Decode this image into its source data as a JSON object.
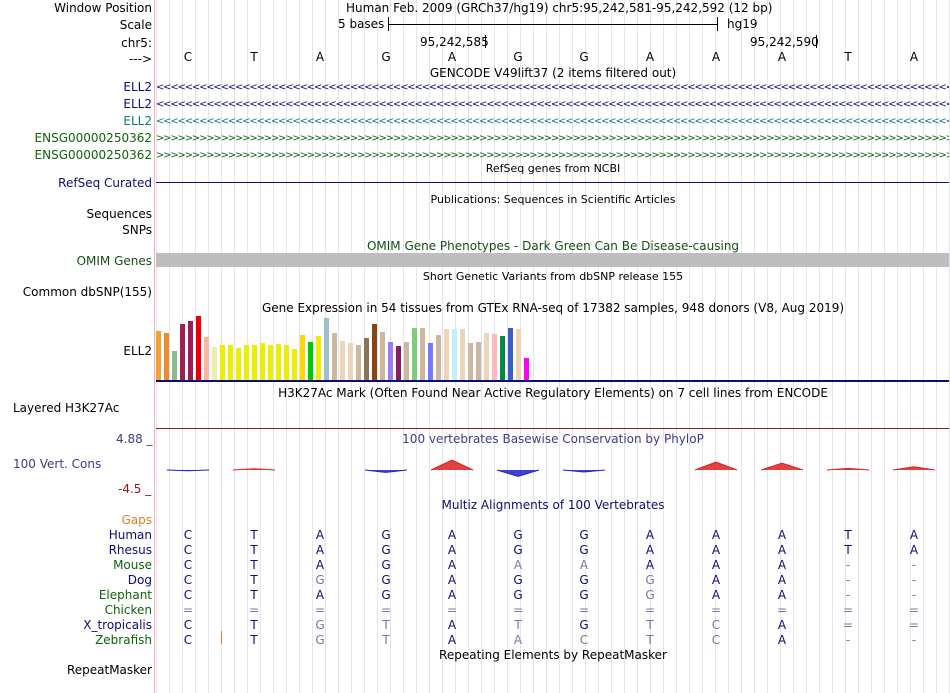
{
  "header": {
    "labels": [
      "Window Position",
      "Scale",
      "chr5:",
      "--->"
    ],
    "position_text": "Human Feb. 2009 (GRCh37/hg19)   chr5:95,242,581-95,242,592 (12 bp)",
    "scale_label": "5 bases",
    "scale_assembly": "hg19",
    "coord_1": "95,242,585",
    "coord_2": "95,242,590"
  },
  "reference_bases": [
    "C",
    "T",
    "A",
    "G",
    "A",
    "G",
    "G",
    "A",
    "A",
    "A",
    "T",
    "A"
  ],
  "gencode": {
    "title": "GENCODE V49lift37 (2 items filtered out)",
    "items": [
      {
        "label": "ELL2",
        "color": "#0c0c78",
        "strand": "<"
      },
      {
        "label": "ELL2",
        "color": "#0c0c78",
        "strand": "<"
      },
      {
        "label": "ELL2",
        "color": "#0c7882",
        "strand": "<"
      },
      {
        "label": "ENSG00000250362",
        "color": "#0c640c",
        "strand": ">"
      },
      {
        "label": "ENSG00000250362",
        "color": "#0c640c",
        "strand": ">"
      }
    ]
  },
  "refseq": {
    "title": "RefSeq genes from NCBI",
    "label": "RefSeq Curated",
    "color": "#0c0c78"
  },
  "publications": {
    "title": "Publications: Sequences in Scientific Articles",
    "labels": [
      "Sequences",
      "SNPs"
    ]
  },
  "omim": {
    "title": "OMIM Gene Phenotypes - Dark Green Can Be Disease-causing",
    "label": "OMIM Genes",
    "color": "#145014",
    "bar_color": "#bebebe"
  },
  "dbsnp": {
    "title": "Short Genetic Variants from dbSNP release 155",
    "label": "Common dbSNP(155)"
  },
  "gtex": {
    "title": "Gene Expression in 54 tissues from GTEx RNA-seq of 17382 samples, 948 donors (V8, Aug 2019)",
    "label": "ELL2",
    "bars": [
      {
        "color": "#f4a030",
        "value": 0.77
      },
      {
        "color": "#ee8a2e",
        "value": 0.73
      },
      {
        "color": "#8fbc8f",
        "value": 0.45
      },
      {
        "color": "#a0204f",
        "value": 0.88
      },
      {
        "color": "#9b1d56",
        "value": 0.92
      },
      {
        "color": "#ee0000",
        "value": 1.0
      },
      {
        "color": "#ffb6a0",
        "value": 0.67
      },
      {
        "color": "#eeeeaa",
        "value": 0.52
      },
      {
        "color": "#eeee00",
        "value": 0.55
      },
      {
        "color": "#eeee00",
        "value": 0.55
      },
      {
        "color": "#eeee00",
        "value": 0.5
      },
      {
        "color": "#eeee00",
        "value": 0.55
      },
      {
        "color": "#eeee00",
        "value": 0.54
      },
      {
        "color": "#eeee00",
        "value": 0.58
      },
      {
        "color": "#eeee00",
        "value": 0.55
      },
      {
        "color": "#eeee00",
        "value": 0.56
      },
      {
        "color": "#eeee00",
        "value": 0.54
      },
      {
        "color": "#eeee00",
        "value": 0.48
      },
      {
        "color": "#ffd700",
        "value": 0.7
      },
      {
        "color": "#00cd00",
        "value": 0.6
      },
      {
        "color": "#eeee00",
        "value": 0.69
      },
      {
        "color": "#9ac0cd",
        "value": 0.97
      },
      {
        "color": "#cdb79e",
        "value": 0.73
      },
      {
        "color": "#eed5b7",
        "value": 0.61
      },
      {
        "color": "#eed5b7",
        "value": 0.58
      },
      {
        "color": "#cdb79e",
        "value": 0.55
      },
      {
        "color": "#8b7355",
        "value": 0.66
      },
      {
        "color": "#8b4513",
        "value": 0.88
      },
      {
        "color": "#cdb79e",
        "value": 0.75
      },
      {
        "color": "#9f79ee",
        "value": 0.6
      },
      {
        "color": "#8b1c62",
        "value": 0.53
      },
      {
        "color": "#cdb79e",
        "value": 0.6
      },
      {
        "color": "#7ccd7c",
        "value": 0.81
      },
      {
        "color": "#cdb79e",
        "value": 0.82
      },
      {
        "color": "#7777ff",
        "value": 0.58
      },
      {
        "color": "#cdb79e",
        "value": 0.7
      },
      {
        "color": "#eed5b7",
        "value": 0.8
      },
      {
        "color": "#bfefff",
        "value": 0.8
      },
      {
        "color": "#eed5b7",
        "value": 0.8
      },
      {
        "color": "#cdb79e",
        "value": 0.58
      },
      {
        "color": "#cdb79e",
        "value": 0.6
      },
      {
        "color": "#eed5b7",
        "value": 0.73
      },
      {
        "color": "#ffb6c1",
        "value": 0.72
      },
      {
        "color": "#008b45",
        "value": 0.68
      },
      {
        "color": "#3a5fcd",
        "value": 0.81
      },
      {
        "color": "#eed5b7",
        "value": 0.8
      },
      {
        "color": "#ff00ff",
        "value": 0.35
      }
    ],
    "baseline_color": "#0c0c78"
  },
  "h3k27ac": {
    "title": "H3K27Ac Mark (Often Found Near Active Regulatory Elements) on 7 cell lines from ENCODE",
    "label": "Layered H3K27Ac",
    "line_color": "#8b1a1a"
  },
  "conservation": {
    "title": "100 vertebrates Basewise Conservation by PhyloP",
    "label": "100 Vert. Cons",
    "max_label": "4.88 _",
    "min_label": "-4.5 _",
    "title_color": "#3c3c8c",
    "scores": [
      -0.2,
      0.3,
      0,
      -0.6,
      2.5,
      -1.6,
      -0.5,
      0,
      2.0,
      1.7,
      0.4,
      0.8
    ]
  },
  "multiz": {
    "title": "Multiz Alignments of 100 Vertebrates",
    "gaps_label": "Gaps",
    "gaps_color": "#e08020",
    "species": [
      {
        "name": "Human",
        "bases": [
          "C",
          "T",
          "A",
          "G",
          "A",
          "G",
          "G",
          "A",
          "A",
          "A",
          "T",
          "A"
        ]
      },
      {
        "name": "Rhesus",
        "bases": [
          "C",
          "T",
          "A",
          "G",
          "A",
          "G",
          "G",
          "A",
          "A",
          "A",
          "T",
          "A"
        ]
      },
      {
        "name": "Mouse",
        "bases": [
          "C",
          "T",
          "A",
          "G",
          "A",
          "A",
          "A",
          "A",
          "A",
          "A",
          "-",
          "-"
        ]
      },
      {
        "name": "Dog",
        "bases": [
          "C",
          "T",
          "G",
          "G",
          "A",
          "G",
          "G",
          "G",
          "A",
          "A",
          "-",
          "-"
        ]
      },
      {
        "name": "Elephant",
        "bases": [
          "C",
          "T",
          "A",
          "G",
          "A",
          "G",
          "G",
          "G",
          "A",
          "A",
          "-",
          "-"
        ]
      },
      {
        "name": "Chicken",
        "bases": [
          "=",
          "=",
          "=",
          "=",
          "=",
          "=",
          "=",
          "=",
          "=",
          "=",
          "=",
          "="
        ]
      },
      {
        "name": "X_tropicalis",
        "bases": [
          "C",
          "T",
          "G",
          "T",
          "A",
          "T",
          "G",
          "T",
          "C",
          "A",
          "=",
          "="
        ]
      },
      {
        "name": "Zebrafish",
        "bases": [
          "C",
          "T",
          "G",
          "T",
          "A",
          "A",
          "C",
          "T",
          "C",
          "A",
          "-",
          "-"
        ]
      }
    ]
  },
  "repeatmasker": {
    "title": "Repeating Elements by RepeatMasker",
    "label": "RepeatMasker"
  }
}
